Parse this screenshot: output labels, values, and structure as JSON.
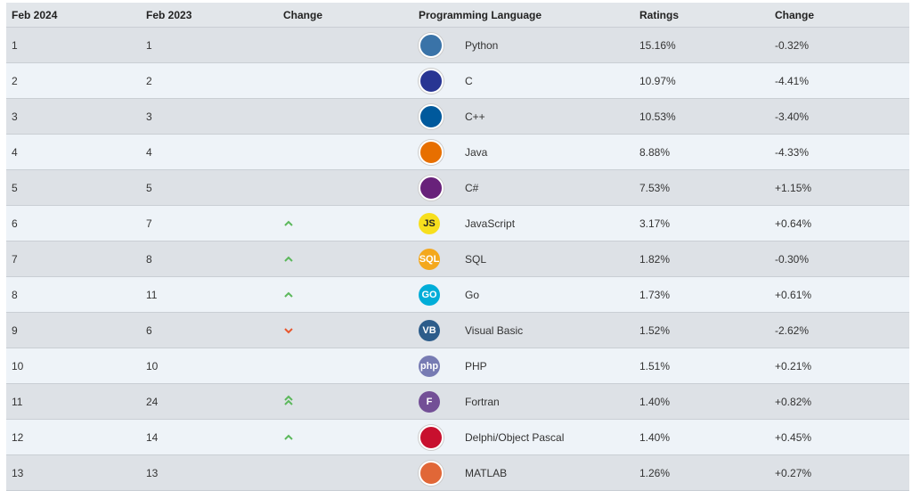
{
  "headers": {
    "current": "Feb 2024",
    "previous": "Feb 2023",
    "change_rank": "Change",
    "language": "Programming Language",
    "ratings": "Ratings",
    "change_rating": "Change"
  },
  "rows": [
    {
      "cur": "1",
      "prev": "1",
      "trend": "none",
      "lang": "Python",
      "rating": "15.16%",
      "delta": "-0.32%",
      "icon": "python-icon",
      "color": "#3a73a8"
    },
    {
      "cur": "2",
      "prev": "2",
      "trend": "none",
      "lang": "C",
      "rating": "10.97%",
      "delta": "-4.41%",
      "icon": "c-language-icon",
      "color": "#283593"
    },
    {
      "cur": "3",
      "prev": "3",
      "trend": "none",
      "lang": "C++",
      "rating": "10.53%",
      "delta": "-3.40%",
      "icon": "cpp-icon",
      "color": "#00599c"
    },
    {
      "cur": "4",
      "prev": "4",
      "trend": "none",
      "lang": "Java",
      "rating": "8.88%",
      "delta": "-4.33%",
      "icon": "java-icon",
      "color": "#e76f00"
    },
    {
      "cur": "5",
      "prev": "5",
      "trend": "none",
      "lang": "C#",
      "rating": "7.53%",
      "delta": "+1.15%",
      "icon": "csharp-icon",
      "color": "#68217a"
    },
    {
      "cur": "6",
      "prev": "7",
      "trend": "up",
      "lang": "JavaScript",
      "rating": "3.17%",
      "delta": "+0.64%",
      "icon": "javascript-icon",
      "color": "#f7df1e"
    },
    {
      "cur": "7",
      "prev": "8",
      "trend": "up",
      "lang": "SQL",
      "rating": "1.82%",
      "delta": "-0.30%",
      "icon": "sql-icon",
      "color": "#f4a81d"
    },
    {
      "cur": "8",
      "prev": "11",
      "trend": "up",
      "lang": "Go",
      "rating": "1.73%",
      "delta": "+0.61%",
      "icon": "go-icon",
      "color": "#00add8"
    },
    {
      "cur": "9",
      "prev": "6",
      "trend": "down",
      "lang": "Visual Basic",
      "rating": "1.52%",
      "delta": "-2.62%",
      "icon": "visual-basic-icon",
      "color": "#2c5c8a"
    },
    {
      "cur": "10",
      "prev": "10",
      "trend": "none",
      "lang": "PHP",
      "rating": "1.51%",
      "delta": "+0.21%",
      "icon": "php-icon",
      "color": "#777bb3"
    },
    {
      "cur": "11",
      "prev": "24",
      "trend": "up2",
      "lang": "Fortran",
      "rating": "1.40%",
      "delta": "+0.82%",
      "icon": "fortran-icon",
      "color": "#734f96"
    },
    {
      "cur": "12",
      "prev": "14",
      "trend": "up",
      "lang": "Delphi/Object Pascal",
      "rating": "1.40%",
      "delta": "+0.45%",
      "icon": "delphi-icon",
      "color": "#c8102e"
    },
    {
      "cur": "13",
      "prev": "13",
      "trend": "none",
      "lang": "MATLAB",
      "rating": "1.26%",
      "delta": "+0.27%",
      "icon": "matlab-icon",
      "color": "#e16737"
    }
  ],
  "logo_text": {
    "javascript-icon": "JS",
    "sql-icon": "SQL",
    "go-icon": "GO",
    "visual-basic-icon": "VB",
    "php-icon": "php",
    "fortran-icon": "F"
  },
  "colors": {
    "up_arrow": "#5cb85c",
    "down_arrow": "#e8572e"
  }
}
